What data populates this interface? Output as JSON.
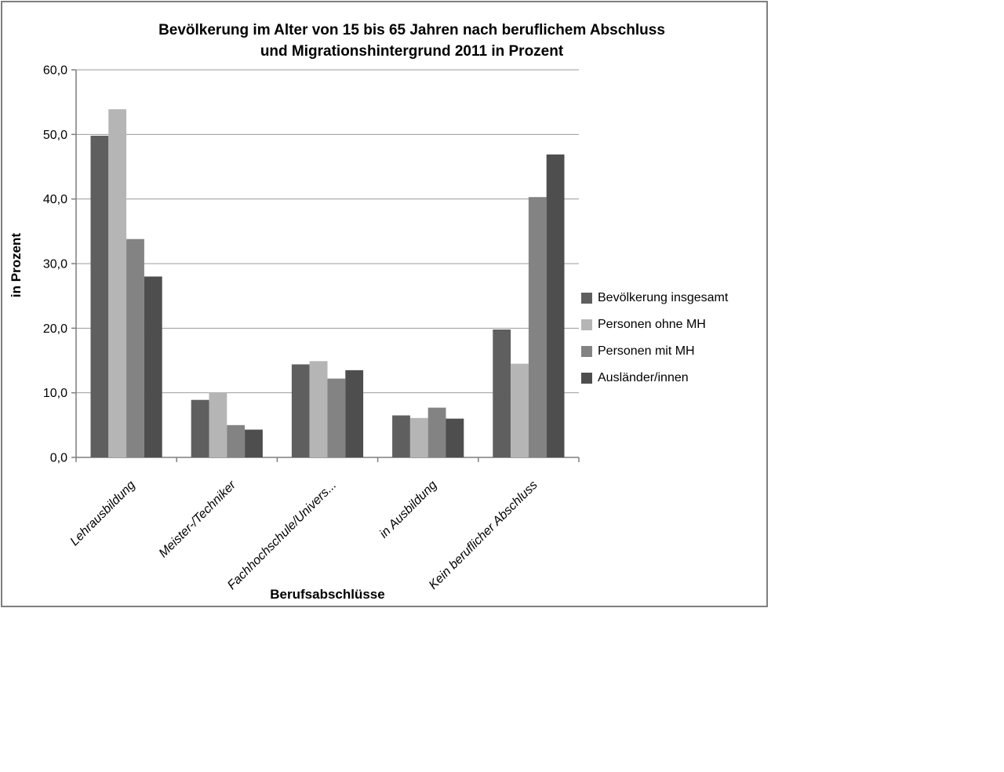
{
  "chart_data": {
    "type": "bar",
    "title": "Bevölkerung im Alter von 15 bis 65 Jahren nach beruflichem Abschluss und Migrationshintergrund 2011 in Prozent",
    "title_line1": "Bevölkerung im Alter von 15 bis 65 Jahren nach beruflichem Abschluss",
    "title_line2": "und Migrationshintergrund 2011 in Prozent",
    "xlabel": "Berufsabschlüsse",
    "ylabel": "in Prozent",
    "ylim": [
      0,
      60
    ],
    "ytick_step": 10,
    "ytick_labels": [
      "0,0",
      "10,0",
      "20,0",
      "30,0",
      "40,0",
      "50,0",
      "60,0"
    ],
    "grid": true,
    "legend_position": "right",
    "categories": [
      "Lehrausbildung",
      "Meister-/Techniker",
      "Fachhochschule/Univers...",
      "in Ausbildung",
      "Kein beruflicher Abschluss"
    ],
    "series": [
      {
        "name": "Bevölkerung insgesamt",
        "color": "#5f5f5f",
        "values": [
          49.8,
          8.9,
          14.4,
          6.5,
          19.8
        ]
      },
      {
        "name": "Personen ohne MH",
        "color": "#b5b5b5",
        "values": [
          53.9,
          10.0,
          14.9,
          6.1,
          14.5
        ]
      },
      {
        "name": "Personen mit MH",
        "color": "#838383",
        "values": [
          33.8,
          5.0,
          12.2,
          7.7,
          40.3
        ]
      },
      {
        "name": "Ausländer/innen",
        "color": "#4e4e4e",
        "values": [
          28.0,
          4.3,
          13.5,
          6.0,
          46.9
        ]
      }
    ]
  },
  "colors": {
    "frame_border": "#7f7f7f",
    "gridline": "#9c9c9c",
    "axis": "#7f7f7f",
    "background": "#ffffff",
    "text": "#000000"
  }
}
